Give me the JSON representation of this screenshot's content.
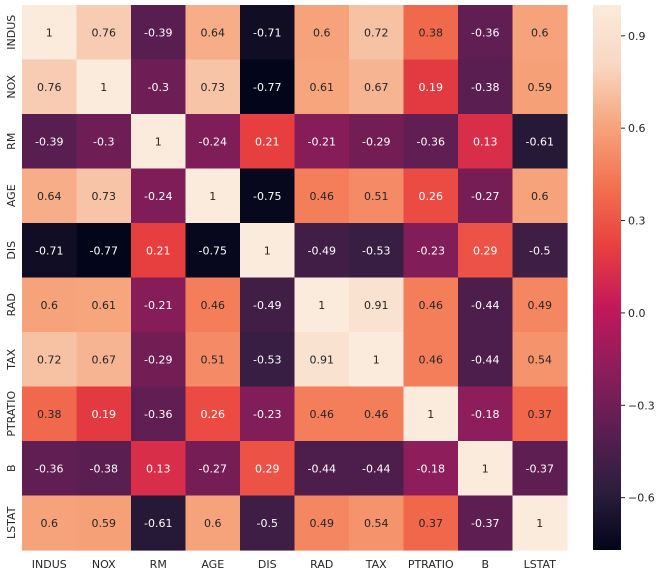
{
  "chart_data": {
    "type": "heatmap",
    "title": "",
    "xlabel": "",
    "ylabel": "",
    "x_labels": [
      "INDUS",
      "NOX",
      "RM",
      "AGE",
      "DIS",
      "RAD",
      "TAX",
      "PTRATIO",
      "B",
      "LSTAT"
    ],
    "y_labels": [
      "INDUS",
      "NOX",
      "RM",
      "AGE",
      "DIS",
      "RAD",
      "TAX",
      "PTRATIO",
      "B",
      "LSTAT"
    ],
    "values": [
      [
        1,
        0.76,
        -0.39,
        0.64,
        -0.71,
        0.6,
        0.72,
        0.38,
        -0.36,
        0.6
      ],
      [
        0.76,
        1,
        -0.3,
        0.73,
        -0.77,
        0.61,
        0.67,
        0.19,
        -0.38,
        0.59
      ],
      [
        -0.39,
        -0.3,
        1,
        -0.24,
        0.21,
        -0.21,
        -0.29,
        -0.36,
        0.13,
        -0.61
      ],
      [
        0.64,
        0.73,
        -0.24,
        1,
        -0.75,
        0.46,
        0.51,
        0.26,
        -0.27,
        0.6
      ],
      [
        -0.71,
        -0.77,
        0.21,
        -0.75,
        1,
        -0.49,
        -0.53,
        -0.23,
        0.29,
        -0.5
      ],
      [
        0.6,
        0.61,
        -0.21,
        0.46,
        -0.49,
        1,
        0.91,
        0.46,
        -0.44,
        0.49
      ],
      [
        0.72,
        0.67,
        -0.29,
        0.51,
        -0.53,
        0.91,
        1,
        0.46,
        -0.44,
        0.54
      ],
      [
        0.38,
        0.19,
        -0.36,
        0.26,
        -0.23,
        0.46,
        0.46,
        1,
        -0.18,
        0.37
      ],
      [
        -0.36,
        -0.38,
        0.13,
        -0.27,
        0.29,
        -0.44,
        -0.44,
        -0.18,
        1,
        -0.37
      ],
      [
        0.6,
        0.59,
        -0.61,
        0.6,
        -0.5,
        0.49,
        0.54,
        0.37,
        -0.37,
        1
      ]
    ],
    "value_range": [
      -0.77,
      1
    ],
    "colormap": "rocket",
    "colormap_stops": [
      "#03051a",
      "#2d1e3e",
      "#5c1e51",
      "#8e1d5b",
      "#c2185a",
      "#e83f3f",
      "#f3714f",
      "#f6a47c",
      "#f8d7c1",
      "#faebdd"
    ],
    "colorbar": {
      "position": "right",
      "ticks": [
        0.9,
        0.6,
        0.3,
        0.0,
        -0.3,
        -0.6
      ],
      "tick_labels": [
        "0.9",
        "0.6",
        "0.3",
        "0.0",
        "−0.3",
        "−0.6"
      ]
    },
    "annotations": true,
    "grid": false
  }
}
